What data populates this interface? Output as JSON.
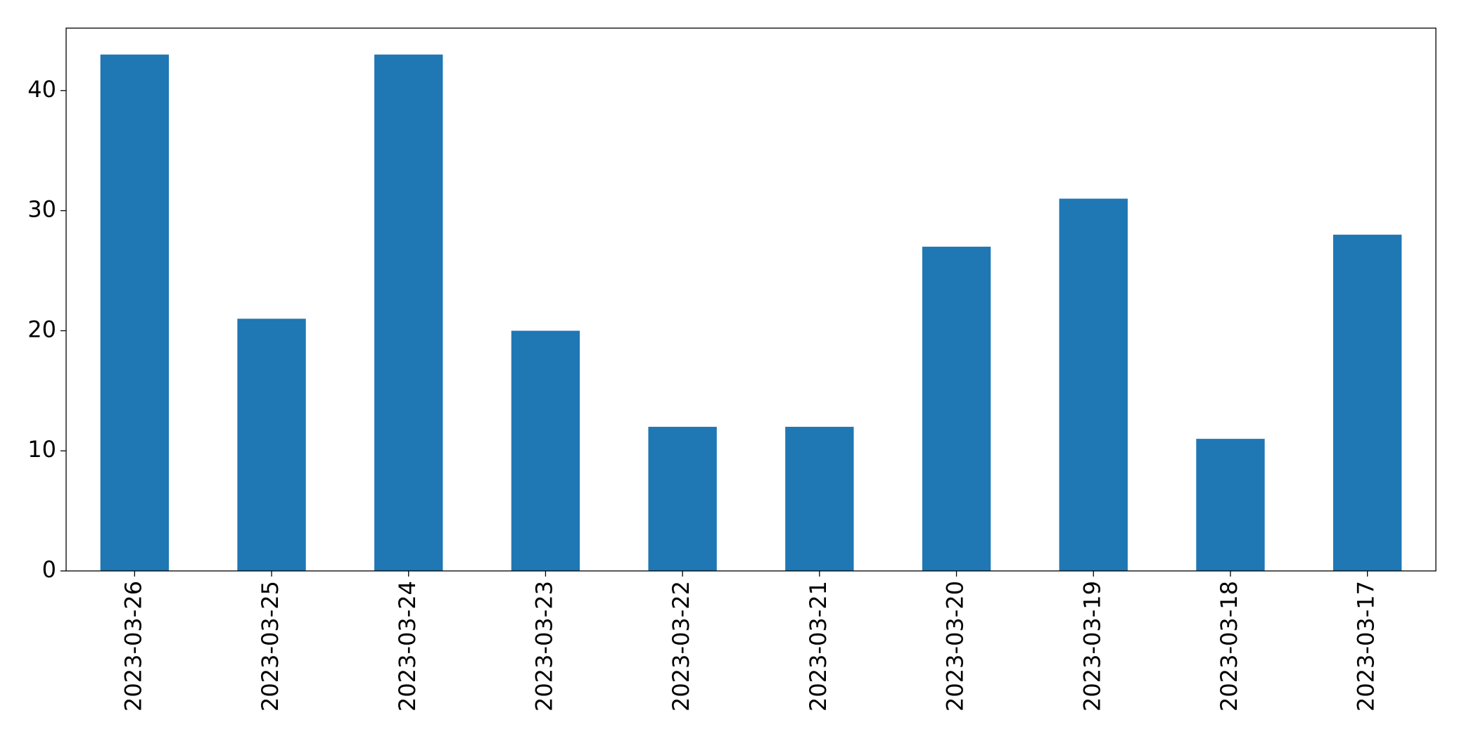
{
  "chart_data": {
    "type": "bar",
    "categories": [
      "2023-03-26",
      "2023-03-25",
      "2023-03-24",
      "2023-03-23",
      "2023-03-22",
      "2023-03-21",
      "2023-03-20",
      "2023-03-19",
      "2023-03-18",
      "2023-03-17"
    ],
    "values": [
      43,
      21,
      43,
      20,
      12,
      12,
      27,
      31,
      11,
      28
    ],
    "color": "#1f77b4",
    "ylim": [
      0,
      45.2
    ],
    "yticks": [
      0,
      10,
      20,
      30,
      40
    ],
    "grid": false
  }
}
